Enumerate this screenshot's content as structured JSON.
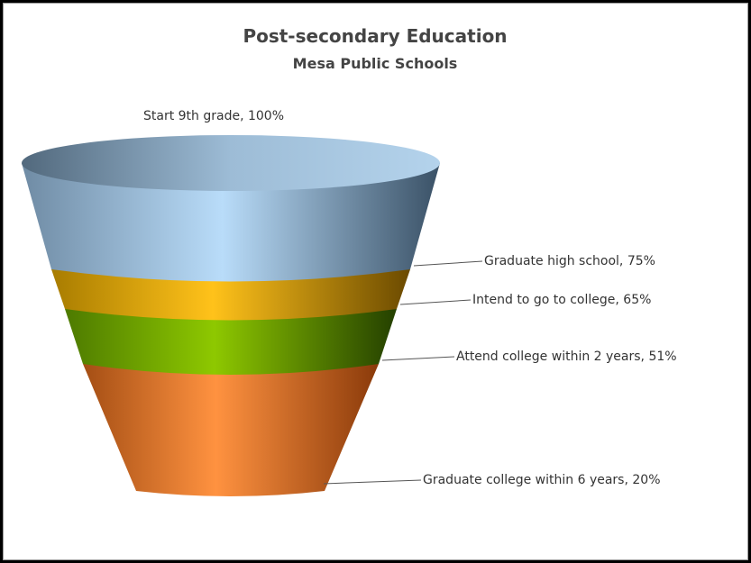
{
  "chart_data": {
    "type": "funnel",
    "title": "Post-secondary Education",
    "subtitle": "Mesa Public Schools",
    "stages": [
      {
        "label": "Start 9th grade, 100%",
        "category": "Start 9th grade",
        "value": 100,
        "color": "#9cc4e8"
      },
      {
        "label": "Graduate high school, 75%",
        "category": "Graduate high school",
        "value": 75,
        "color": "#e3aa10"
      },
      {
        "label": "Intend to go to college, 65%",
        "category": "Intend to go to college",
        "value": 65,
        "color": "#6fa300"
      },
      {
        "label": "Attend college within 2 years, 51%",
        "category": "Attend college within 2 years",
        "value": 51,
        "color": "#f07c30"
      },
      {
        "label": "Graduate college within 6 years, 20%",
        "category": "Graduate college within 6 years",
        "value": 20,
        "color": "#f07c30"
      }
    ]
  }
}
